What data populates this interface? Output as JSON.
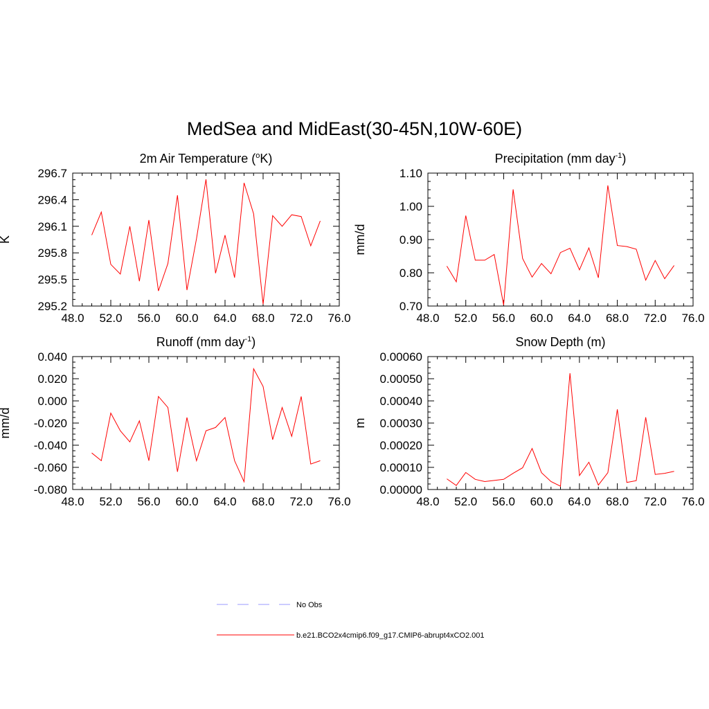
{
  "title": "MedSea and MidEast(30-45N,10W-60E)",
  "legend": [
    {
      "label": "No Obs",
      "color": "#9999ff",
      "dash": true
    },
    {
      "label": "b.e21.BCO2x4cmip6.f09_g17.CMIP6-abrupt4xCO2.001",
      "color": "#ff0000",
      "dash": false
    }
  ],
  "chart_data": [
    {
      "type": "line",
      "title": "2m Air Temperature (",
      "title_sup": "o",
      "title_after": "K)",
      "ylabel": "K",
      "xlim": [
        48,
        76
      ],
      "ylim": [
        295.2,
        296.7
      ],
      "xticks": [
        48.0,
        52.0,
        56.0,
        60.0,
        64.0,
        68.0,
        72.0,
        76.0
      ],
      "xtick_labels": [
        "48.0",
        "52.0",
        "56.0",
        "60.0",
        "64.0",
        "68.0",
        "72.0",
        "76.0"
      ],
      "yticks": [
        295.2,
        295.5,
        295.8,
        296.1,
        296.4,
        296.7
      ],
      "ytick_labels": [
        "295.2",
        "295.5",
        "295.8",
        "296.1",
        "296.4",
        "296.7"
      ],
      "series": [
        {
          "color": "#ff0000",
          "x": [
            50,
            51,
            52,
            53,
            54,
            55,
            56,
            57,
            58,
            59,
            60,
            61,
            62,
            63,
            64,
            65,
            66,
            67,
            68,
            69,
            70,
            71,
            72,
            73,
            74
          ],
          "y": [
            296.0,
            296.26,
            295.67,
            295.56,
            296.1,
            295.48,
            296.17,
            295.37,
            295.68,
            296.45,
            295.38,
            295.96,
            296.63,
            295.57,
            296.0,
            295.52,
            296.59,
            296.24,
            295.22,
            296.22,
            296.1,
            296.23,
            296.21,
            295.88,
            296.16
          ]
        }
      ]
    },
    {
      "type": "line",
      "title": "Precipitation (mm day",
      "title_sup": "-1",
      "title_after": ")",
      "ylabel": "mm/d",
      "xlim": [
        48,
        76
      ],
      "ylim": [
        0.7,
        1.1
      ],
      "xticks": [
        48.0,
        52.0,
        56.0,
        60.0,
        64.0,
        68.0,
        72.0,
        76.0
      ],
      "xtick_labels": [
        "48.0",
        "52.0",
        "56.0",
        "60.0",
        "64.0",
        "68.0",
        "72.0",
        "76.0"
      ],
      "yticks": [
        0.7,
        0.8,
        0.9,
        1.0,
        1.1
      ],
      "ytick_labels": [
        "0.70",
        "0.80",
        "0.90",
        "1.00",
        "1.10"
      ],
      "series": [
        {
          "color": "#ff0000",
          "x": [
            50,
            51,
            52,
            53,
            54,
            55,
            56,
            57,
            58,
            59,
            60,
            61,
            62,
            63,
            64,
            65,
            66,
            67,
            68,
            69,
            70,
            71,
            72,
            73,
            74
          ],
          "y": [
            0.82,
            0.773,
            0.972,
            0.838,
            0.838,
            0.855,
            0.703,
            1.051,
            0.843,
            0.787,
            0.828,
            0.797,
            0.861,
            0.874,
            0.809,
            0.875,
            0.785,
            1.063,
            0.882,
            0.879,
            0.871,
            0.778,
            0.837,
            0.782,
            0.822
          ]
        }
      ]
    },
    {
      "type": "line",
      "title": "Runoff (mm day",
      "title_sup": "-1",
      "title_after": ")",
      "ylabel": "mm/d",
      "xlim": [
        48,
        76
      ],
      "ylim": [
        -0.08,
        0.04
      ],
      "xticks": [
        48.0,
        52.0,
        56.0,
        60.0,
        64.0,
        68.0,
        72.0,
        76.0
      ],
      "xtick_labels": [
        "48.0",
        "52.0",
        "56.0",
        "60.0",
        "64.0",
        "68.0",
        "72.0",
        "76.0"
      ],
      "yticks": [
        -0.08,
        -0.06,
        -0.04,
        -0.02,
        0.0,
        0.02,
        0.04
      ],
      "ytick_labels": [
        "-0.080",
        "-0.060",
        "-0.040",
        "-0.020",
        "0.000",
        "0.020",
        "0.040"
      ],
      "series": [
        {
          "color": "#ff0000",
          "x": [
            50,
            51,
            52,
            53,
            54,
            55,
            56,
            57,
            58,
            59,
            60,
            61,
            62,
            63,
            64,
            65,
            66,
            67,
            68,
            69,
            70,
            71,
            72,
            73,
            74
          ],
          "y": [
            -0.047,
            -0.054,
            -0.011,
            -0.027,
            -0.037,
            -0.018,
            -0.054,
            0.004,
            -0.006,
            -0.064,
            -0.015,
            -0.054,
            -0.027,
            -0.024,
            -0.015,
            -0.054,
            -0.073,
            0.029,
            0.013,
            -0.035,
            -0.006,
            -0.032,
            0.004,
            -0.057,
            -0.054
          ]
        }
      ]
    },
    {
      "type": "line",
      "title": "Snow Depth (m)",
      "title_sup": "",
      "title_after": "",
      "ylabel": "m",
      "xlim": [
        48,
        76
      ],
      "ylim": [
        0.0,
        0.0006
      ],
      "xticks": [
        48.0,
        52.0,
        56.0,
        60.0,
        64.0,
        68.0,
        72.0,
        76.0
      ],
      "xtick_labels": [
        "48.0",
        "52.0",
        "56.0",
        "60.0",
        "64.0",
        "68.0",
        "72.0",
        "76.0"
      ],
      "yticks": [
        0.0,
        0.0001,
        0.0002,
        0.0003,
        0.0004,
        0.0005,
        0.0006
      ],
      "ytick_labels": [
        "0.00000",
        "0.00010",
        "0.00020",
        "0.00030",
        "0.00040",
        "0.00050",
        "0.00060"
      ],
      "series": [
        {
          "color": "#ff0000",
          "x": [
            50,
            51,
            52,
            53,
            54,
            55,
            56,
            57,
            58,
            59,
            60,
            61,
            62,
            63,
            64,
            65,
            66,
            67,
            68,
            69,
            70,
            71,
            72,
            73,
            74
          ],
          "y": [
            4.8e-05,
            1.8e-05,
            7.7e-05,
            4.6e-05,
            3.6e-05,
            4.1e-05,
            4.6e-05,
            7.3e-05,
            9.8e-05,
            0.000185,
            7.6e-05,
            3.6e-05,
            1.5e-05,
            0.000525,
            6.3e-05,
            0.000123,
            2e-05,
            7.6e-05,
            0.000362,
            3.2e-05,
            4e-05,
            0.000326,
            6.8e-05,
            7.3e-05,
            8.2e-05
          ]
        }
      ]
    }
  ]
}
